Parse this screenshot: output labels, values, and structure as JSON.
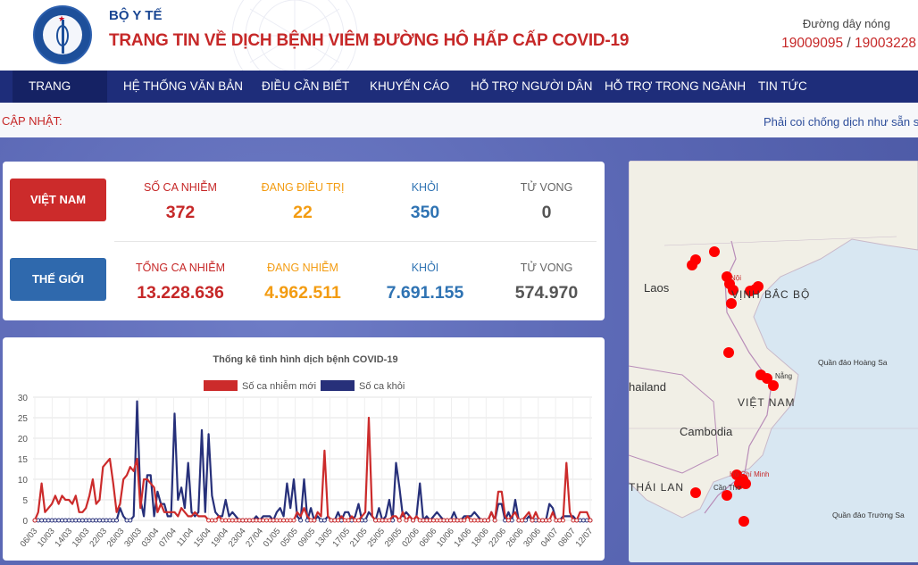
{
  "header": {
    "ministry": "BỘ Y TẾ",
    "site_title": "TRANG TIN VỀ DỊCH BỆNH VIÊM ĐƯỜNG HÔ HẤP CẤP COVID-19",
    "hotline_label": "Đường dây nóng",
    "hotline_1": "19009095",
    "hotline_sep": "/",
    "hotline_2": "19003228"
  },
  "nav": {
    "items": [
      "TRANG CHỦ",
      "HỆ THỐNG VĂN BẢN",
      "ĐIỀU CẦN BIẾT",
      "KHUYẾN CÁO",
      "HỖ TRỢ NGƯỜI DÂN",
      "HỖ TRỢ TRONG NGÀNH",
      "TIN TỨC"
    ]
  },
  "ticker": {
    "label": "CẬP NHẬT:",
    "text": "Phải coi chống dịch như sẵn sà"
  },
  "stats": {
    "vietnam": {
      "badge": "VIỆT NAM",
      "infected_label": "SỐ CA NHIỄM",
      "infected": "372",
      "treating_label": "ĐANG ĐIỀU TRỊ",
      "treating": "22",
      "recovered_label": "KHỎI",
      "recovered": "350",
      "deaths_label": "TỬ VONG",
      "deaths": "0"
    },
    "world": {
      "badge": "THẾ GIỚI",
      "infected_label": "TỔNG CA NHIỄM",
      "infected": "13.228.636",
      "active_label": "ĐANG NHIỄM",
      "active": "4.962.511",
      "recovered_label": "KHỎI",
      "recovered": "7.691.155",
      "deaths_label": "TỬ VONG",
      "deaths": "574.970"
    }
  },
  "colors": {
    "new_cases": "#cc2b2b",
    "recovered": "#27307a",
    "nav": "#1e2d7a"
  },
  "chart_data": {
    "type": "line",
    "title": "Thống kê tình hình dịch bệnh COVID-19",
    "legend_position": "top",
    "ylim": [
      0,
      30
    ],
    "yticks": [
      0,
      5,
      10,
      15,
      20,
      25,
      30
    ],
    "grid": true,
    "x_tick_labels": [
      "06/03",
      "10/03",
      "14/03",
      "18/03",
      "22/03",
      "26/03",
      "30/03",
      "03/04",
      "07/04",
      "11/04",
      "15/04",
      "19/04",
      "23/04",
      "27/04",
      "01/05",
      "05/05",
      "09/05",
      "13/05",
      "17/05",
      "21/05",
      "25/05",
      "29/05",
      "02/06",
      "06/06",
      "10/06",
      "14/06",
      "18/06",
      "22/06",
      "26/06",
      "30/06",
      "04/07",
      "08/07",
      "12/07"
    ],
    "series": [
      {
        "name": "Số ca nhiễm mới",
        "values": [
          0,
          2,
          9,
          2,
          3,
          4,
          6,
          4,
          6,
          5,
          5,
          4,
          6,
          2,
          2,
          3,
          6,
          10,
          4,
          5,
          13,
          14,
          15,
          9,
          2,
          4,
          10,
          11,
          13,
          12,
          15,
          3,
          10,
          10,
          9,
          8,
          2,
          4,
          2,
          2,
          2,
          2,
          1,
          3,
          2,
          1,
          1,
          2,
          1,
          1,
          1,
          0,
          0,
          0,
          1,
          0,
          0,
          0,
          0,
          0,
          0,
          0,
          0,
          0,
          0,
          0,
          0,
          0,
          0,
          0,
          0,
          0,
          0,
          0,
          0,
          0,
          0,
          2,
          1,
          3,
          1,
          0,
          0,
          2,
          1,
          17,
          1,
          0,
          0,
          0,
          1,
          0,
          0,
          1,
          0,
          0,
          1,
          2,
          25,
          1,
          0,
          0,
          0,
          0,
          0,
          1,
          1,
          0,
          2,
          0,
          1,
          0,
          1,
          0,
          0,
          0,
          0,
          0,
          0,
          0,
          0,
          0,
          0,
          0,
          0,
          0,
          0,
          1,
          0,
          0,
          0,
          0,
          0,
          0,
          2,
          0,
          7,
          7,
          1,
          0,
          1,
          2,
          0,
          0,
          1,
          2,
          0,
          2,
          0,
          0,
          0,
          0,
          2,
          0,
          0,
          0,
          14,
          2,
          0,
          0,
          2,
          2,
          2,
          0
        ]
      },
      {
        "name": "Số ca khỏi",
        "values": [
          0,
          0,
          0,
          0,
          0,
          0,
          0,
          0,
          0,
          0,
          0,
          0,
          0,
          0,
          0,
          0,
          0,
          0,
          0,
          0,
          0,
          0,
          0,
          0,
          0,
          3,
          1,
          0,
          0,
          1,
          29,
          5,
          1,
          11,
          11,
          1,
          7,
          4,
          4,
          1,
          1,
          26,
          5,
          8,
          3,
          14,
          2,
          1,
          2,
          22,
          2,
          21,
          6,
          2,
          1,
          1,
          5,
          1,
          2,
          1,
          0,
          0,
          0,
          0,
          0,
          1,
          0,
          1,
          1,
          1,
          0,
          2,
          3,
          1,
          9,
          3,
          10,
          1,
          0,
          10,
          0,
          3,
          0,
          1,
          0,
          0,
          1,
          0,
          0,
          2,
          0,
          2,
          2,
          0,
          1,
          4,
          0,
          0,
          2,
          1,
          0,
          3,
          0,
          1,
          5,
          0,
          14,
          8,
          1,
          2,
          1,
          0,
          1,
          9,
          0,
          1,
          0,
          1,
          2,
          1,
          0,
          0,
          0,
          2,
          0,
          0,
          1,
          1,
          1,
          2,
          1,
          0,
          0,
          0,
          2,
          0,
          4,
          4,
          0,
          2,
          0,
          5,
          0,
          0,
          0,
          1,
          0,
          0,
          0,
          0,
          0,
          4,
          3,
          0,
          0,
          1,
          1,
          1,
          1,
          0,
          0,
          0,
          0,
          0
        ]
      }
    ]
  },
  "map": {
    "labels": [
      "Laos",
      "VỊNH BẮC BỘ",
      "Quần đảo Hoàng Sa",
      "hailand",
      "VIỆT NAM",
      "Cambodia",
      "THÁI LAN",
      "Quần đảo Trường Sa",
      "Nội",
      "Nẵng",
      "Hồ Chí Minh",
      "Cần Thơ"
    ]
  }
}
